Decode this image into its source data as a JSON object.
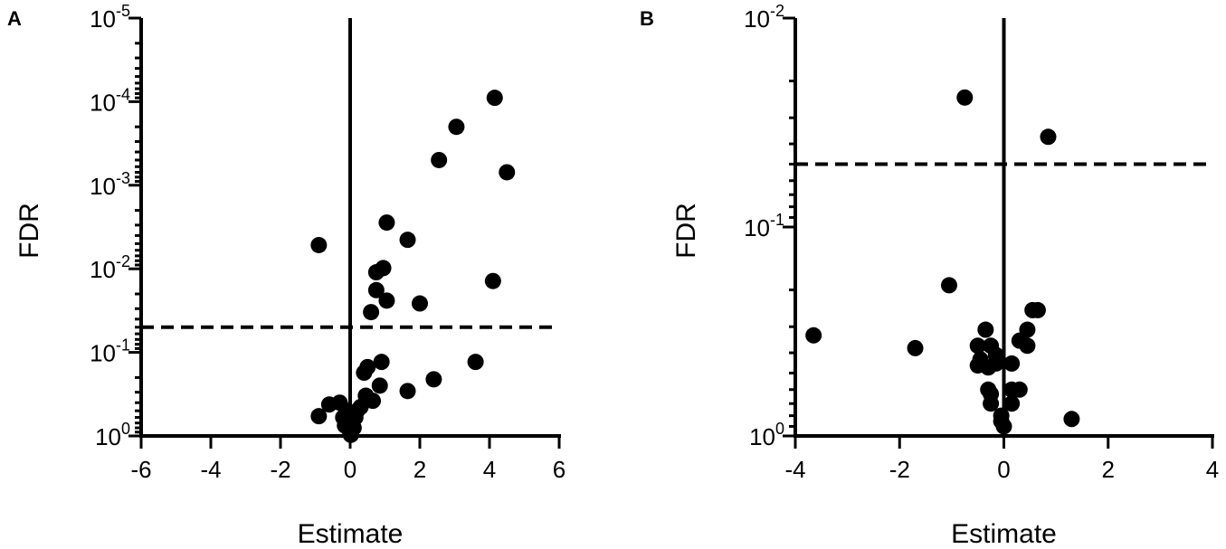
{
  "chart_data": [
    {
      "panel": "A",
      "type": "scatter",
      "xlabel": "Estimate",
      "ylabel": "FDR",
      "xlim": [
        -6,
        6
      ],
      "ylim": [
        1,
        1e-05
      ],
      "y_scale": "log (inverted)",
      "x_ticks": [
        "-6",
        "-4",
        "-2",
        "0",
        "2",
        "4",
        "6"
      ],
      "y_ticks": [
        {
          "base": "10",
          "exp": "0"
        },
        {
          "base": "10",
          "exp": "-1"
        },
        {
          "base": "10",
          "exp": "-2"
        },
        {
          "base": "10",
          "exp": "-3"
        },
        {
          "base": "10",
          "exp": "-4"
        },
        {
          "base": "10",
          "exp": "-5"
        }
      ],
      "threshold_fdr": 0.05,
      "points": [
        {
          "x": 4.15,
          "y": 9e-05
        },
        {
          "x": 3.05,
          "y": 0.0002
        },
        {
          "x": 2.55,
          "y": 0.0005
        },
        {
          "x": 4.5,
          "y": 0.0007
        },
        {
          "x": 1.05,
          "y": 0.0028
        },
        {
          "x": 1.65,
          "y": 0.0045
        },
        {
          "x": -0.9,
          "y": 0.0052
        },
        {
          "x": 0.95,
          "y": 0.0098
        },
        {
          "x": 0.75,
          "y": 0.011
        },
        {
          "x": 4.1,
          "y": 0.014
        },
        {
          "x": 0.75,
          "y": 0.018
        },
        {
          "x": 1.05,
          "y": 0.024
        },
        {
          "x": 2.0,
          "y": 0.026
        },
        {
          "x": 0.6,
          "y": 0.033
        },
        {
          "x": 3.6,
          "y": 0.13
        },
        {
          "x": 0.9,
          "y": 0.13
        },
        {
          "x": 0.5,
          "y": 0.15
        },
        {
          "x": 0.4,
          "y": 0.175
        },
        {
          "x": 2.4,
          "y": 0.21
        },
        {
          "x": 0.85,
          "y": 0.25
        },
        {
          "x": 1.65,
          "y": 0.29
        },
        {
          "x": 0.45,
          "y": 0.33
        },
        {
          "x": 0.65,
          "y": 0.38
        },
        {
          "x": -0.3,
          "y": 0.4
        },
        {
          "x": -0.6,
          "y": 0.42
        },
        {
          "x": 0.3,
          "y": 0.45
        },
        {
          "x": -0.1,
          "y": 0.5
        },
        {
          "x": 0.2,
          "y": 0.5
        },
        {
          "x": -0.9,
          "y": 0.58
        },
        {
          "x": -0.2,
          "y": 0.6
        },
        {
          "x": 0.15,
          "y": 0.6
        },
        {
          "x": 0.05,
          "y": 0.7
        },
        {
          "x": -0.15,
          "y": 0.75
        },
        {
          "x": 0.1,
          "y": 0.8
        },
        {
          "x": 0.0,
          "y": 0.9
        },
        {
          "x": 0.02,
          "y": 0.97
        }
      ]
    },
    {
      "panel": "B",
      "type": "scatter",
      "xlabel": "Estimate",
      "ylabel": "FDR",
      "xlim": [
        -4,
        4
      ],
      "ylim": [
        1,
        0.01
      ],
      "y_scale": "log (inverted)",
      "x_ticks": [
        "-4",
        "-2",
        "0",
        "2",
        "4"
      ],
      "y_ticks": [
        {
          "base": "10",
          "exp": "0"
        },
        {
          "base": "10",
          "exp": "-1"
        },
        {
          "base": "10",
          "exp": "-2"
        }
      ],
      "threshold_fdr": 0.05,
      "points": [
        {
          "x": -0.75,
          "y": 0.024
        },
        {
          "x": 0.85,
          "y": 0.037
        },
        {
          "x": -1.05,
          "y": 0.19
        },
        {
          "x": 0.55,
          "y": 0.25
        },
        {
          "x": 0.65,
          "y": 0.25
        },
        {
          "x": -3.65,
          "y": 0.33
        },
        {
          "x": -0.35,
          "y": 0.31
        },
        {
          "x": 0.45,
          "y": 0.31
        },
        {
          "x": -1.7,
          "y": 0.38
        },
        {
          "x": -0.5,
          "y": 0.37
        },
        {
          "x": -0.25,
          "y": 0.37
        },
        {
          "x": 0.3,
          "y": 0.35
        },
        {
          "x": 0.45,
          "y": 0.37
        },
        {
          "x": -0.45,
          "y": 0.43
        },
        {
          "x": -0.15,
          "y": 0.41
        },
        {
          "x": -0.5,
          "y": 0.46
        },
        {
          "x": -0.3,
          "y": 0.47
        },
        {
          "x": -0.15,
          "y": 0.45
        },
        {
          "x": 0.15,
          "y": 0.45
        },
        {
          "x": -0.3,
          "y": 0.6
        },
        {
          "x": 0.15,
          "y": 0.6
        },
        {
          "x": 0.3,
          "y": 0.6
        },
        {
          "x": -0.25,
          "y": 0.63
        },
        {
          "x": -0.25,
          "y": 0.7
        },
        {
          "x": 0.15,
          "y": 0.7
        },
        {
          "x": -0.05,
          "y": 0.8
        },
        {
          "x": 1.3,
          "y": 0.83
        },
        {
          "x": -0.05,
          "y": 0.85
        },
        {
          "x": 0.0,
          "y": 0.9
        }
      ]
    }
  ]
}
